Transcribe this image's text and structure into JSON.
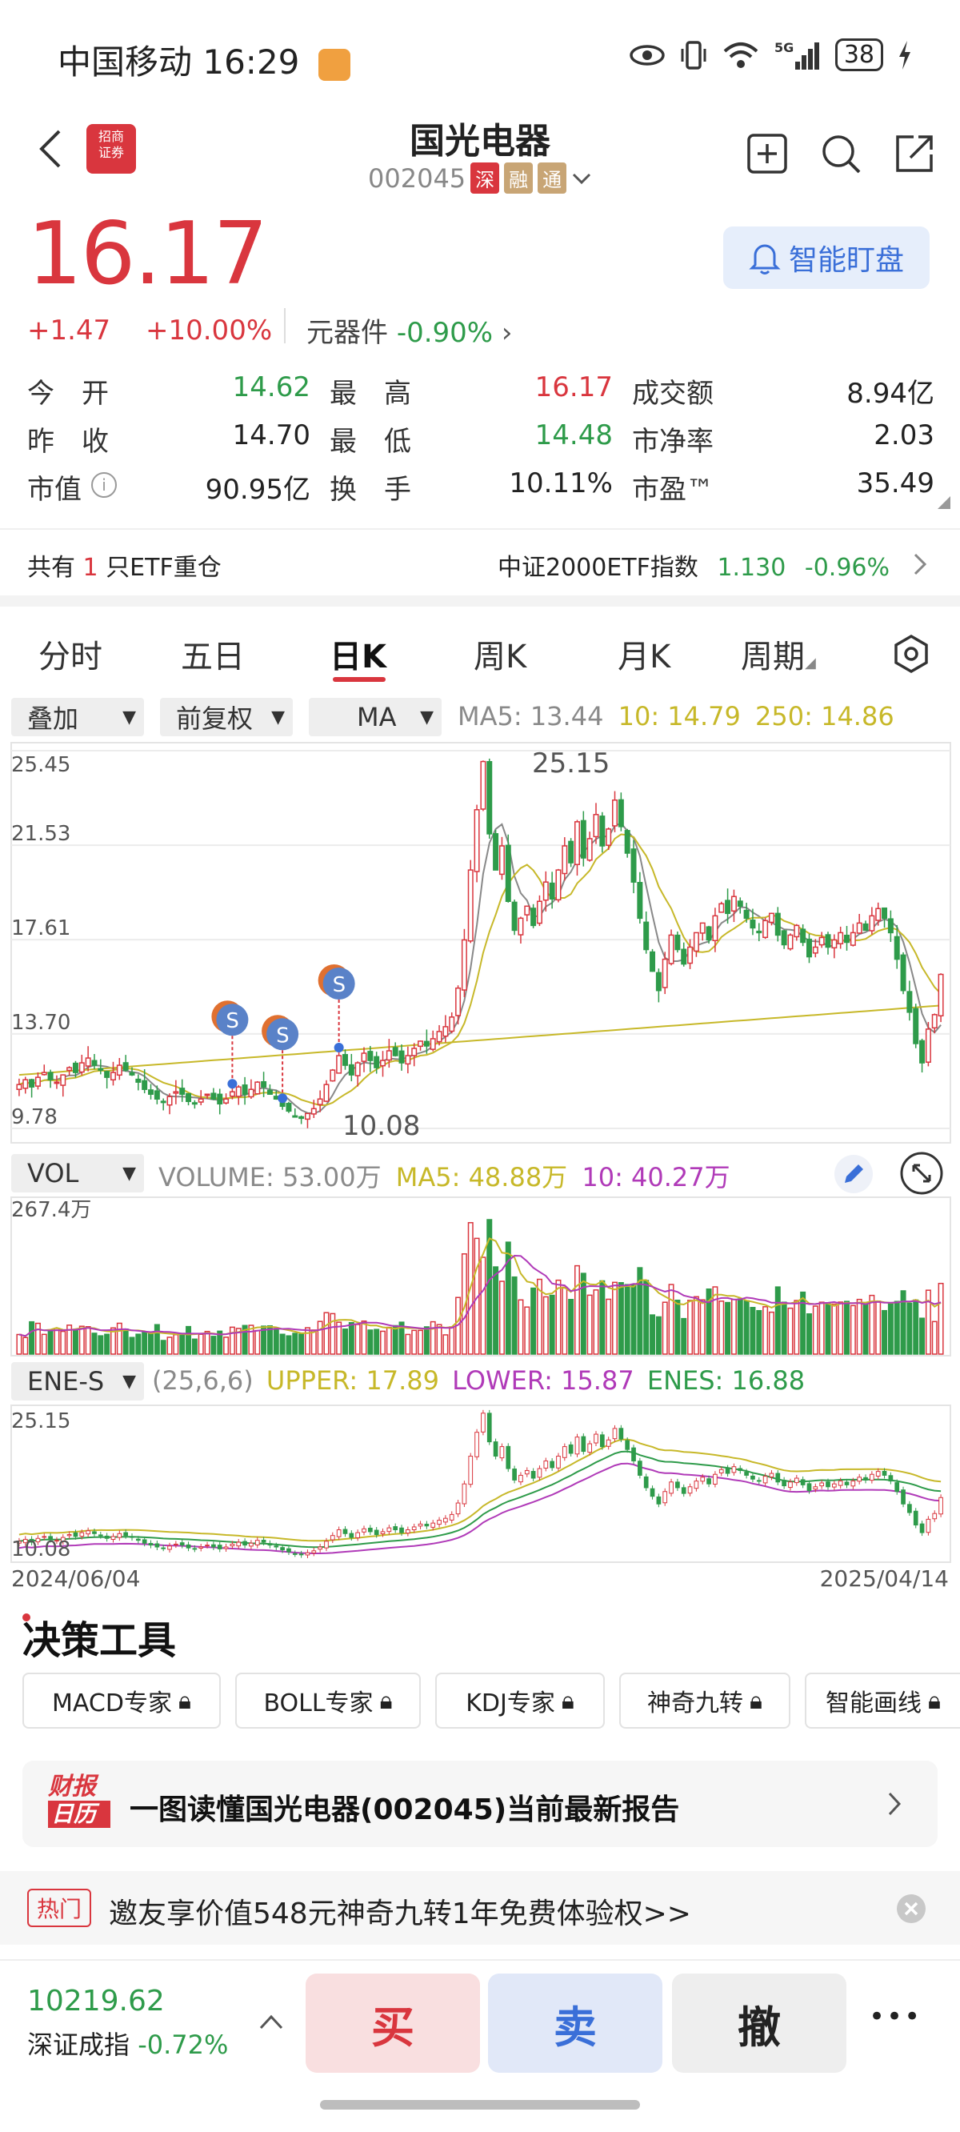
{
  "status": {
    "carrier_time": "中国移动 16:29",
    "battery": "38"
  },
  "header": {
    "title": "国光电器",
    "code": "002045",
    "tag1": "深",
    "tag2": "融",
    "tag3": "通",
    "broker_logo": "招商证券"
  },
  "quote": {
    "price": "16.17",
    "change": "+1.47",
    "pct": "+10.00%",
    "sector_name": "元器件",
    "sector_pct": "-0.90%",
    "watch_label": "智能盯盘"
  },
  "stats": [
    {
      "label": "今　开",
      "value": "14.62",
      "color": "green"
    },
    {
      "label": "最　高",
      "value": "16.17",
      "color": "red"
    },
    {
      "label": "成交额",
      "value": "8.94亿",
      "color": "dark"
    },
    {
      "label": "昨　收",
      "value": "14.70",
      "color": "dark"
    },
    {
      "label": "最　低",
      "value": "14.48",
      "color": "green"
    },
    {
      "label": "市净率",
      "value": "2.03",
      "color": "dark"
    },
    {
      "label": "市值",
      "value": "90.95亿",
      "color": "dark"
    },
    {
      "label": "换　手",
      "value": "10.11%",
      "color": "dark"
    },
    {
      "label": "市盈™",
      "value": "35.49",
      "color": "dark"
    }
  ],
  "etf": {
    "pre": "共有",
    "count": "1",
    "post": "只ETF重仓",
    "index_name": "中证2000ETF指数",
    "index_value": "1.130",
    "index_pct": "-0.96%"
  },
  "tabs": [
    "分时",
    "五日",
    "日K",
    "周K",
    "月K",
    "周期"
  ],
  "controls": {
    "overlay": "叠加",
    "adjust": "前复权",
    "ma": "MA",
    "ma5": "MA5: 13.44",
    "ma10": "10: 14.79",
    "ma250": "250: 14.86"
  },
  "kline": {
    "y_ticks": [
      "25.45",
      "21.53",
      "17.61",
      "13.70",
      "9.78"
    ],
    "high_label": "25.15",
    "low_label": "10.08"
  },
  "volume": {
    "selector": "VOL",
    "vol_text": "VOLUME: 53.00万",
    "ma5": "MA5: 48.88万",
    "ma10": "10: 40.27万",
    "max_label": "267.4万"
  },
  "enes": {
    "selector": "ENE-S",
    "params": "(25,6,6)",
    "upper": "UPPER: 17.89",
    "lower": "LOWER: 15.87",
    "enes": "ENES: 16.88",
    "top_label": "25.15",
    "bottom_label": "10.08",
    "date_start": "2024/06/04",
    "date_end": "2025/04/14"
  },
  "tools": {
    "title": "决策工具",
    "items": [
      "MACD专家",
      "BOLL专家",
      "KDJ专家",
      "神奇九转",
      "智能画线"
    ]
  },
  "report": {
    "logo_top": "财报",
    "logo_bottom": "日历",
    "text": "一图读懂国光电器(002045)当前最新报告"
  },
  "hot": {
    "tag": "热门",
    "text": "邀友享价值548元神奇九转1年免费体验权>>"
  },
  "bottom": {
    "index_value": "10219.62",
    "index_name": "深证成指",
    "index_pct": "-0.72%",
    "buy": "买",
    "sell": "卖",
    "cancel": "撤",
    "more": "•••"
  },
  "chart_data": {
    "type": "candlestick",
    "title": "",
    "ylim": [
      9.78,
      25.45
    ],
    "x_range": [
      "2024/06/04",
      "2025/04/14"
    ],
    "closes": [
      11.6,
      11.8,
      11.5,
      11.9,
      12.1,
      11.8,
      11.7,
      12.0,
      12.3,
      12.1,
      12.5,
      12.7,
      12.4,
      12.2,
      11.9,
      12.1,
      12.4,
      12.2,
      12.0,
      11.7,
      11.4,
      11.2,
      11.0,
      10.9,
      11.1,
      11.3,
      11.2,
      10.9,
      10.8,
      11.0,
      11.2,
      11.0,
      10.8,
      11.0,
      11.3,
      11.5,
      11.2,
      11.4,
      11.7,
      11.5,
      11.2,
      11.0,
      10.7,
      10.5,
      10.3,
      10.2,
      10.4,
      10.6,
      11.0,
      11.6,
      12.2,
      12.8,
      12.4,
      12.0,
      12.5,
      12.9,
      12.6,
      12.3,
      12.6,
      13.0,
      12.8,
      12.5,
      12.8,
      13.1,
      13.4,
      13.2,
      13.5,
      13.8,
      14.0,
      14.4,
      15.6,
      17.6,
      20.5,
      23.0,
      25.0,
      22.0,
      20.5,
      21.5,
      19.2,
      18.0,
      18.5,
      19.0,
      18.2,
      19.2,
      20.0,
      19.3,
      20.5,
      21.5,
      20.8,
      22.5,
      21.0,
      21.8,
      22.8,
      21.5,
      22.2,
      23.4,
      22.3,
      21.2,
      20.0,
      18.5,
      17.2,
      16.3,
      15.5,
      16.8,
      17.8,
      17.2,
      16.6,
      17.3,
      17.9,
      18.3,
      17.6,
      18.6,
      19.1,
      18.7,
      19.4,
      19.0,
      18.5,
      18.1,
      17.9,
      18.4,
      18.7,
      17.8,
      17.4,
      17.8,
      18.2,
      17.5,
      16.9,
      17.3,
      17.7,
      17.3,
      17.6,
      17.9,
      17.5,
      17.9,
      18.3,
      18.0,
      18.6,
      18.9,
      18.5,
      17.9,
      16.8,
      15.5,
      14.6,
      13.3,
      12.5,
      13.9,
      14.5,
      16.17
    ],
    "series": [
      {
        "name": "MA5",
        "color": "#888888"
      },
      {
        "name": "10",
        "color": "#c7b829"
      },
      {
        "name": "250",
        "color": "#c7b829"
      }
    ]
  }
}
